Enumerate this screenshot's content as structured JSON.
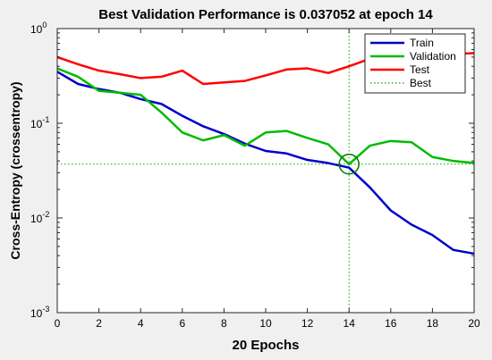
{
  "chart_data": {
    "type": "line",
    "title": "Best Validation Performance is 0.037052 at epoch 14",
    "xlabel": "20 Epochs",
    "ylabel": "Cross-Entropy  (crossentropy)",
    "xlim": [
      0,
      20
    ],
    "ylim": [
      0.001,
      1
    ],
    "yscale": "log",
    "x_ticks": [
      "0",
      "2",
      "4",
      "6",
      "8",
      "10",
      "12",
      "14",
      "16",
      "18",
      "20"
    ],
    "y_ticks": [
      {
        "base": "10",
        "exp": "0"
      },
      {
        "base": "10",
        "exp": "-1"
      },
      {
        "base": "10",
        "exp": "-2"
      },
      {
        "base": "10",
        "exp": "-3"
      }
    ],
    "grid": false,
    "legend_position": "top-right",
    "series": [
      {
        "name": "Train",
        "color": "#0000cc",
        "style": "solid",
        "x": [
          0,
          1,
          2,
          3,
          4,
          5,
          6,
          7,
          8,
          9,
          10,
          11,
          12,
          13,
          14,
          15,
          16,
          17,
          18,
          19,
          20
        ],
        "values": [
          0.35,
          0.26,
          0.23,
          0.21,
          0.18,
          0.16,
          0.12,
          0.093,
          0.077,
          0.061,
          0.051,
          0.048,
          0.041,
          0.038,
          0.034,
          0.021,
          0.012,
          0.0085,
          0.0066,
          0.0046,
          0.0042
        ]
      },
      {
        "name": "Validation",
        "color": "#00bb00",
        "style": "solid",
        "x": [
          0,
          1,
          2,
          3,
          4,
          5,
          6,
          7,
          8,
          9,
          10,
          11,
          12,
          13,
          14,
          15,
          16,
          17,
          18,
          19,
          20
        ],
        "values": [
          0.38,
          0.31,
          0.22,
          0.21,
          0.2,
          0.13,
          0.08,
          0.066,
          0.075,
          0.058,
          0.08,
          0.083,
          0.07,
          0.06,
          0.037,
          0.058,
          0.065,
          0.063,
          0.044,
          0.04,
          0.038
        ]
      },
      {
        "name": "Test",
        "color": "#ff0000",
        "style": "solid",
        "x": [
          0,
          1,
          2,
          3,
          4,
          5,
          6,
          7,
          8,
          9,
          10,
          11,
          12,
          13,
          14,
          15,
          16,
          17,
          18,
          19,
          20
        ],
        "values": [
          0.5,
          0.42,
          0.36,
          0.33,
          0.3,
          0.31,
          0.36,
          0.26,
          0.27,
          0.28,
          0.32,
          0.37,
          0.38,
          0.34,
          0.4,
          0.48,
          0.5,
          0.52,
          0.55,
          0.54,
          0.55
        ]
      },
      {
        "name": "Best",
        "color": "#00aa00",
        "style": "dotted"
      }
    ],
    "best": {
      "epoch": 14,
      "value": 0.037052
    }
  },
  "colors": {
    "figure_bg": "#f0f0f0",
    "plot_bg": "#ffffff",
    "best_marker": "#007700"
  }
}
